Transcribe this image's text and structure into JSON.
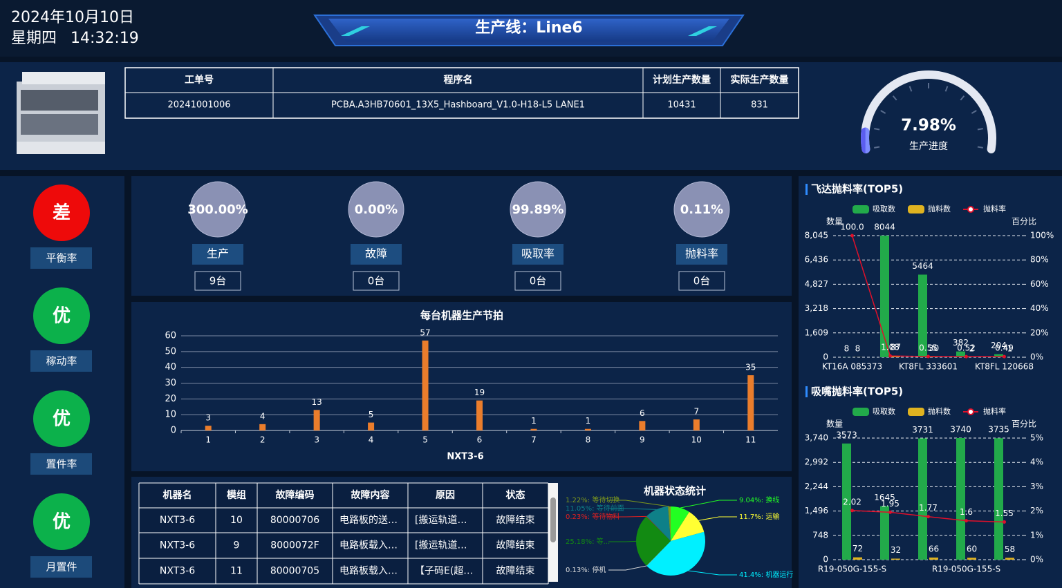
{
  "header": {
    "date": "2024年10月10日",
    "weekday": "星期四",
    "time": "14:32:19",
    "title": "生产线：Line6"
  },
  "order_table": {
    "headers": [
      "工单号",
      "程序名",
      "计划生产数量",
      "实际生产数量"
    ],
    "rows": [
      [
        "20241001006",
        "PCBA.A3HB70601_13X5_Hashboard_V1.0-H18-L5 LANE1",
        "10431",
        "831"
      ]
    ]
  },
  "progress": {
    "value": 7.98,
    "value_label": "7.98%",
    "label": "生产进度",
    "range": [
      0,
      100
    ]
  },
  "ratings": [
    {
      "grade": "差",
      "label": "平衡率",
      "color": "#ee0a0a"
    },
    {
      "grade": "优",
      "label": "稼动率",
      "color": "#0cb14b"
    },
    {
      "grade": "优",
      "label": "置件率",
      "color": "#0cb14b"
    },
    {
      "grade": "优",
      "label": "月置件",
      "color": "#0cb14b"
    }
  ],
  "stats": [
    {
      "value": "300.00%",
      "label": "生产",
      "count": "9台"
    },
    {
      "value": "0.00%",
      "label": "故障",
      "count": "0台"
    },
    {
      "value": "99.89%",
      "label": "吸取率",
      "count": "0台"
    },
    {
      "value": "0.11%",
      "label": "抛料率",
      "count": "0台"
    }
  ],
  "cycle_chart": {
    "type": "bar",
    "title": "每台机器生产节拍",
    "x_label": "NXT3-6",
    "categories": [
      "1",
      "2",
      "3",
      "4",
      "5",
      "6",
      "7",
      "8",
      "9",
      "10",
      "11"
    ],
    "values": [
      3,
      4,
      13,
      5,
      57,
      19,
      1,
      1,
      6,
      7,
      35
    ],
    "color": "#ea7d2c",
    "ylim": [
      0,
      60
    ],
    "yticks": [
      0,
      10,
      20,
      30,
      40,
      50,
      60
    ],
    "grid": true
  },
  "fault_table": {
    "headers": [
      "机器名",
      "模组",
      "故障编码",
      "故障内容",
      "原因",
      "状态"
    ],
    "rows": [
      [
        "NXT3-6",
        "10",
        "80000706",
        "电路板的送…",
        "[搬运轨道…",
        "故障结束"
      ],
      [
        "NXT3-6",
        "9",
        "8000072F",
        "电路板载入…",
        "[搬运轨道…",
        "故障结束"
      ],
      [
        "NXT3-6",
        "11",
        "80000705",
        "电路板载入…",
        "【子码E(超…",
        "故障结束"
      ]
    ]
  },
  "status_chart": {
    "type": "pie",
    "title": "机器状态统计",
    "values": [
      9.04,
      11.7,
      41.4,
      0.13,
      25.18,
      0.23,
      11.05,
      1.22
    ],
    "value_labels": [
      "9.04%: 换线",
      "11.7%: 运输",
      "41.4%: 机器运行",
      "0.13%: 停机",
      "25.18%: 等...",
      "0.23%: 等待物料",
      "11.05%: 等待前面",
      "1.22%: 等待切换"
    ],
    "colors": [
      "#22ff22",
      "#ffff33",
      "#00f0ff",
      "#dddddd",
      "#128a12",
      "#e02020",
      "#0e8088",
      "#7f9a1c"
    ]
  },
  "feeder_chart": {
    "type": "bar",
    "title": "飞达抛料率(TOP5)",
    "y_label": "数量",
    "y2_label": "百分比",
    "categories": [
      "KT16A 085373",
      null,
      "KT8FL 333601",
      null,
      "KT8FL 120668"
    ],
    "series": [
      {
        "name": "吸取数",
        "color": "#22aa4a",
        "values": [
          8,
          8044,
          5464,
          382,
          204
        ]
      },
      {
        "name": "抛料数",
        "color": "#e0b320",
        "values": [
          8,
          87,
          30,
          2,
          1
        ]
      },
      {
        "name": "抛料率",
        "color": "#e0102a",
        "type": "line",
        "axis": "y2",
        "values": [
          100,
          1.08,
          0.55,
          0.52,
          0.49
        ],
        "value_labels": [
          "100.0",
          "1.08",
          "0.55",
          "0.52",
          "0.49"
        ]
      }
    ],
    "ylim": [
      0,
      8045
    ],
    "yticks": [
      0,
      {
        "value": 1609,
        "label": "1,609"
      },
      {
        "value": 3218,
        "label": "3,218"
      },
      {
        "value": 4827,
        "label": "4,827"
      },
      {
        "value": 6436,
        "label": "6,436"
      },
      {
        "value": 8045,
        "label": "8,045"
      }
    ],
    "y2lim": [
      0,
      100
    ],
    "y2ticks": [
      {
        "value": 0,
        "label": "0%"
      },
      {
        "value": 20,
        "label": "20%"
      },
      {
        "value": 40,
        "label": "40%"
      },
      {
        "value": 60,
        "label": "60%"
      },
      {
        "value": 80,
        "label": "80%"
      },
      {
        "value": 100,
        "label": "100%"
      }
    ],
    "grid": true
  },
  "nozzle_chart": {
    "type": "bar",
    "title": "吸嘴抛料率(TOP5)",
    "y_label": "数量",
    "y2_label": "百分比",
    "categories": [
      "R19-050G-155-S",
      null,
      null,
      "R19-050G-155-S",
      null
    ],
    "series": [
      {
        "name": "吸取数",
        "color": "#22aa4a",
        "values": [
          3573,
          1645,
          3731,
          3740,
          3735
        ]
      },
      {
        "name": "抛料数",
        "color": "#e0b320",
        "values": [
          72,
          32,
          66,
          60,
          58
        ]
      },
      {
        "name": "抛料率",
        "color": "#e0102a",
        "type": "line",
        "axis": "y2",
        "values": [
          2.02,
          1.95,
          1.77,
          1.6,
          1.55
        ]
      }
    ],
    "ylim": [
      0,
      3740
    ],
    "yticks": [
      0,
      748,
      {
        "value": 1496,
        "label": "1,496"
      },
      {
        "value": 2244,
        "label": "2,244"
      },
      {
        "value": 2992,
        "label": "2,992"
      },
      {
        "value": 3740,
        "label": "3,740"
      }
    ],
    "y2lim": [
      0,
      5
    ],
    "y2ticks": [
      {
        "value": 0,
        "label": "0%"
      },
      {
        "value": 1,
        "label": "1%"
      },
      {
        "value": 2,
        "label": "2%"
      },
      {
        "value": 3,
        "label": "3%"
      },
      {
        "value": 4,
        "label": "4%"
      },
      {
        "value": 5,
        "label": "5%"
      }
    ],
    "grid": true
  }
}
